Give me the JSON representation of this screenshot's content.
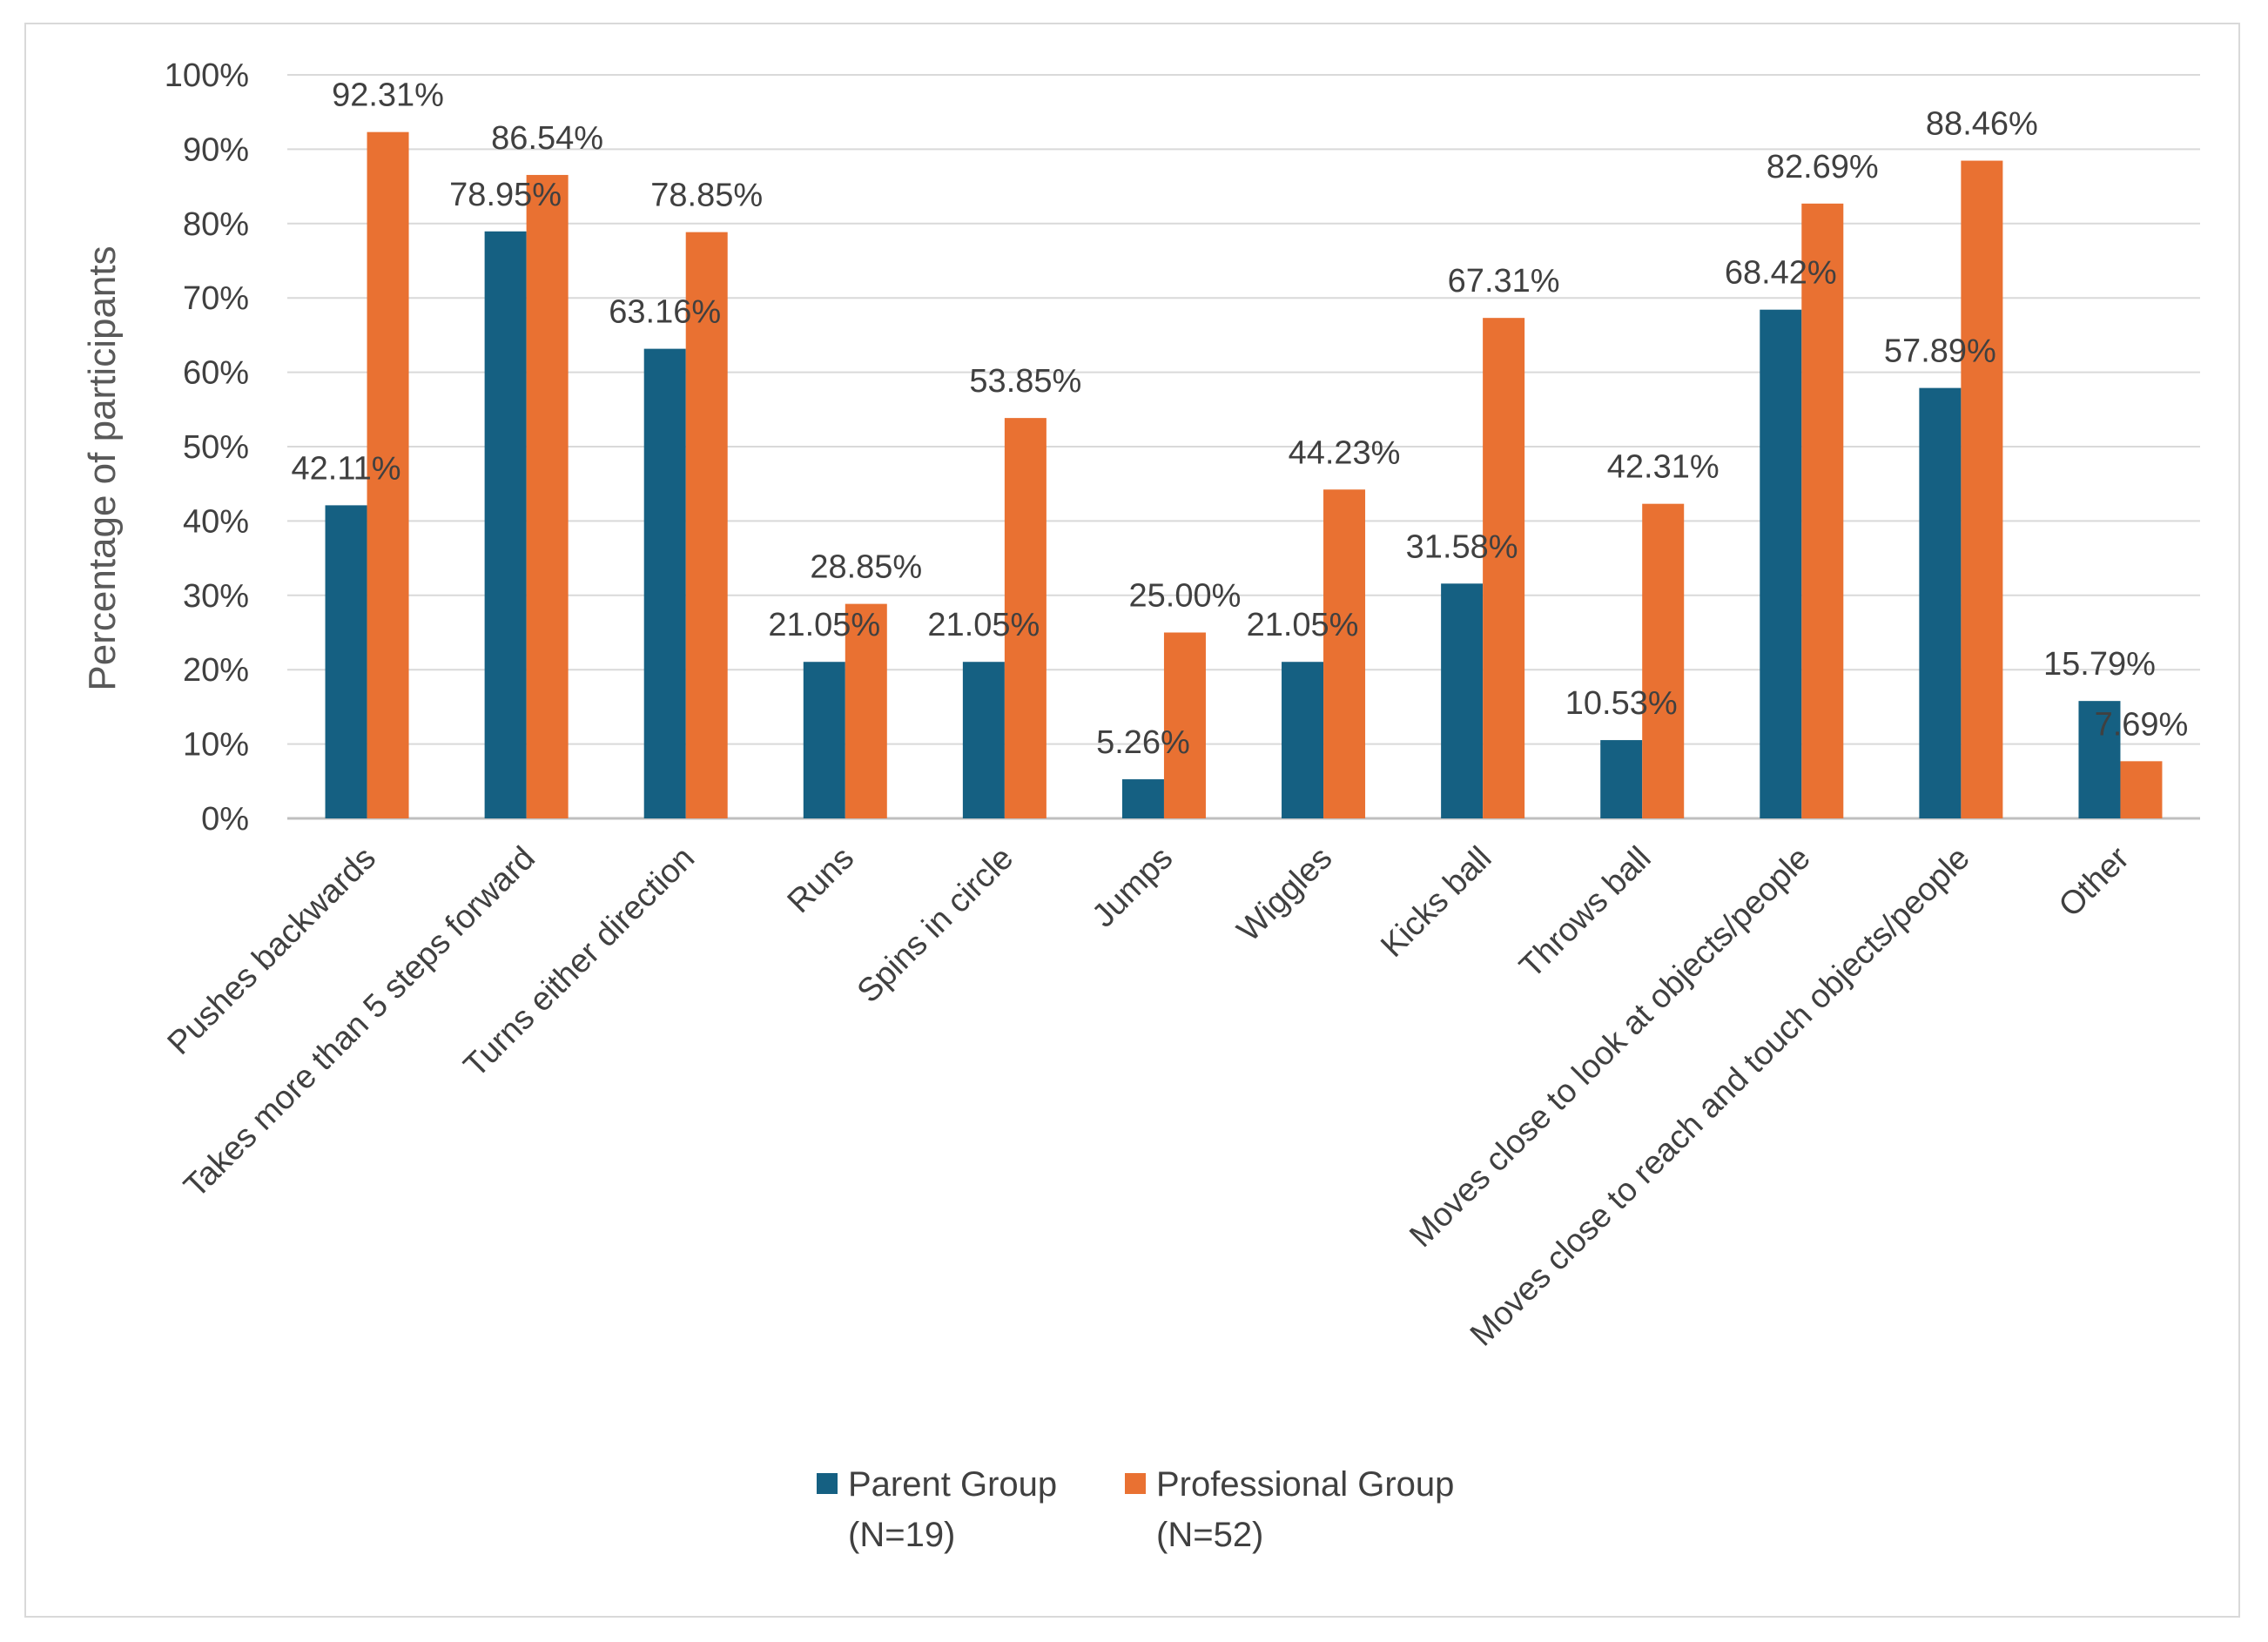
{
  "chart_data": {
    "type": "bar",
    "title": "",
    "xlabel": "",
    "ylabel": "Percentage of participants",
    "ylim": [
      0,
      100
    ],
    "yticks": [
      "0%",
      "10%",
      "20%",
      "30%",
      "40%",
      "50%",
      "60%",
      "70%",
      "80%",
      "90%",
      "100%"
    ],
    "grid": true,
    "legend_position": "bottom",
    "categories": [
      "Pushes backwards",
      "Takes more than 5 steps forward",
      "Turns either direction",
      "Runs",
      "Spins in circle",
      "Jumps",
      "Wiggles",
      "Kicks ball",
      "Throws ball",
      "Moves close to look at objects/people",
      "Moves close to reach and touch objects/people",
      "Other"
    ],
    "series": [
      {
        "name": "Parent Group (N=19)",
        "legend_lines": [
          "Parent Group",
          "(N=19)"
        ],
        "color": "#156082",
        "values": [
          42.11,
          78.95,
          63.16,
          21.05,
          21.05,
          5.26,
          21.05,
          31.58,
          10.53,
          68.42,
          57.89,
          15.79
        ],
        "labels": [
          "42.11%",
          "78.95%",
          "63.16%",
          "21.05%",
          "21.05%",
          "5.26%",
          "21.05%",
          "31.58%",
          "10.53%",
          "68.42%",
          "57.89%",
          "15.79%"
        ]
      },
      {
        "name": "Professional Group (N=52)",
        "legend_lines": [
          "Professional Group",
          "(N=52)"
        ],
        "color": "#E97132",
        "values": [
          92.31,
          86.54,
          78.85,
          28.85,
          53.85,
          25.0,
          44.23,
          67.31,
          42.31,
          82.69,
          88.46,
          7.69
        ],
        "labels": [
          "92.31%",
          "86.54%",
          "78.85%",
          "28.85%",
          "53.85%",
          "25.00%",
          "44.23%",
          "67.31%",
          "42.31%",
          "82.69%",
          "88.46%",
          "7.69%"
        ]
      }
    ]
  }
}
